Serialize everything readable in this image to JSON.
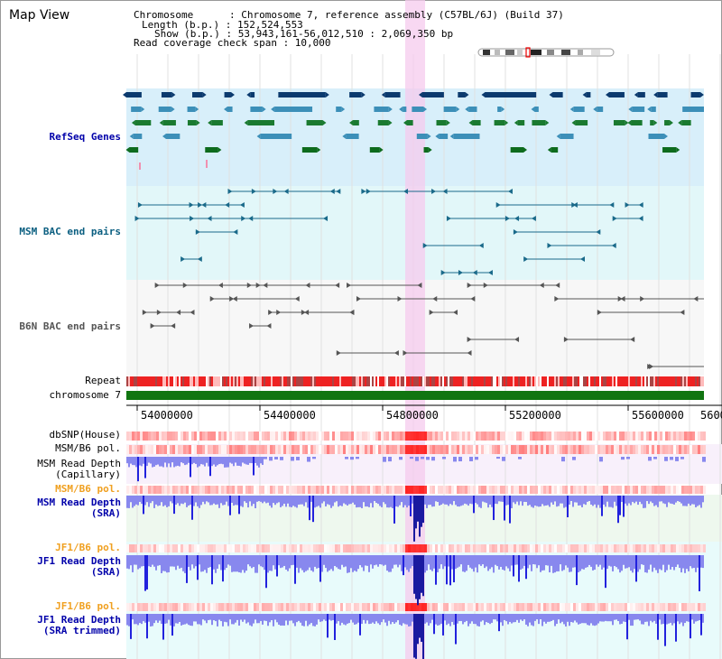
{
  "window": {
    "title": "Map View"
  },
  "info": {
    "chromosome": "Chromosome      : Chromosome 7, reference assembly (C57BL/6J) (Build 37)",
    "length": "Length (b.p.) : 152,524,553",
    "show": "Show (b.p.) : 53,943,161-56,012,510 : 2,069,350 bp",
    "read_coverage": "Read coverage check span : 10,000"
  },
  "tracks": {
    "refseq": "RefSeq Genes",
    "msm_bac": "MSM BAC end pairs",
    "b6n_bac": "B6N BAC end pairs",
    "repeat": "Repeat",
    "chromosome": "chromosome 7",
    "dbsnp": "dbSNP(House)",
    "msm_b6_pol_1": "MSM/B6 pol.",
    "msm_capillary_1": "MSM Read Depth",
    "msm_capillary_2": "(Capillary)",
    "msm_b6_pol_2": "MSM/B6 pol.",
    "msm_sra_1": "MSM Read Depth",
    "msm_sra_2": "(SRA)",
    "jf1_b6_pol_1": "JF1/B6 pol.",
    "jf1_sra_1": "JF1 Read Depth",
    "jf1_sra_2": "(SRA)",
    "jf1_b6_pol_2": "JF1/B6 pol.",
    "jf1_trim_1": "JF1 Read Depth",
    "jf1_trim_2": "(SRA trimmed)"
  },
  "axis": {
    "ticks": [
      "54000000",
      "54400000",
      "54800000",
      "55200000",
      "55600000",
      "5600"
    ]
  },
  "colors": {
    "refseq_bg": "#d8effa",
    "msm_bg": "#e2f7f9",
    "b6n_bg": "#f7f7f7",
    "highlight": "#f6cbee",
    "chromosome": "#117511",
    "label_blue": "#0000aa",
    "label_teal": "#0a5e80",
    "label_orange": "#f0a020",
    "depth_dark": "#2222dd",
    "depth_light": "#8888ee",
    "pol_red": "#ff3333"
  }
}
